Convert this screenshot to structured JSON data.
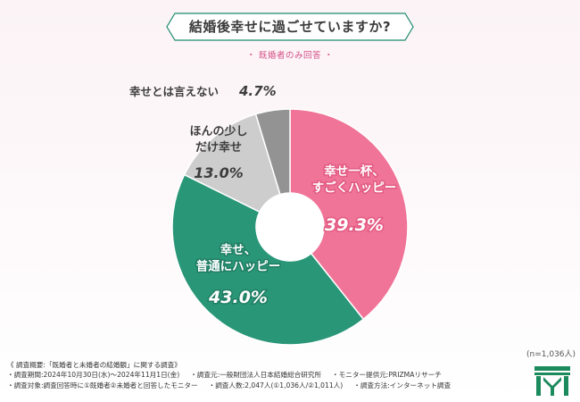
{
  "header": {
    "title": "結婚後幸せに過ごせていますか?",
    "subtitle": "・ 既婚者のみ回答 ・"
  },
  "chart_data": {
    "type": "pie",
    "donut": true,
    "title": "結婚後幸せに過ごせていますか?",
    "subtitle": "既婚者のみ回答",
    "slices": [
      {
        "lines": [
          "幸せ一杯、",
          "すごくハッピー"
        ],
        "value": 39.3,
        "value_label": "39.3%",
        "color": "#f07497"
      },
      {
        "lines": [
          "幸せ、",
          "普通にハッピー"
        ],
        "value": 43.0,
        "value_label": "43.0%",
        "color": "#2a9678"
      },
      {
        "lines": [
          "ほんの少し",
          "だけ幸せ"
        ],
        "value": 13.0,
        "value_label": "13.0%",
        "color": "#cdcdcd"
      },
      {
        "lines": [
          "幸せとは言えない"
        ],
        "value": 4.7,
        "value_label": "4.7%",
        "color": "#939393"
      }
    ],
    "sample_size": "(n=1,036人)"
  },
  "footer": {
    "line1": "《 調査概要:「既婚者と未婚者の結婚観」に関する調査》",
    "period": "・調査期間:2024年10月30日(水)〜2024年11月1日(金)",
    "source": "・調査元:一般財団法人日本結婚総合研究所",
    "monitor": "・モニター提供元:PRIZMAリサーチ",
    "target": "・調査対象:調査回答時に①既婚者②未婚者と回答したモニター",
    "count": "・調査人数:2,047人(①1,036人/②1,011人)",
    "method": "・調査方法:インターネット調査"
  },
  "colors": {
    "accent_pink": "#d64f86",
    "banner_green": "#1f8a6e",
    "logo_green": "#1b8a5c"
  },
  "icons": {
    "logo": "organization-logo-icon"
  }
}
